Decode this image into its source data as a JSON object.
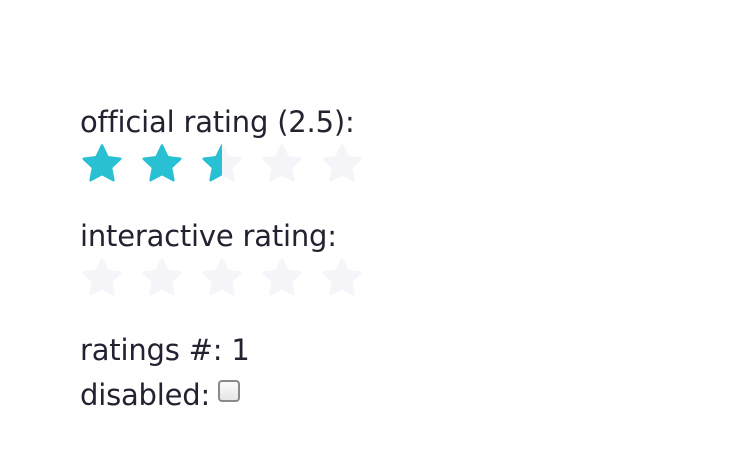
{
  "official": {
    "label": "official rating (2.5):",
    "rating": 2.5,
    "max": 5
  },
  "interactive": {
    "label": "interactive rating:",
    "rating": 0,
    "max": 5
  },
  "ratings_count": {
    "label": "ratings #: 1"
  },
  "disabled": {
    "label": "disabled:",
    "checked": false
  },
  "colors": {
    "star_filled": "#29c0d4",
    "star_empty": "#f4f4f9"
  },
  "icons": {
    "star": "star-icon"
  }
}
